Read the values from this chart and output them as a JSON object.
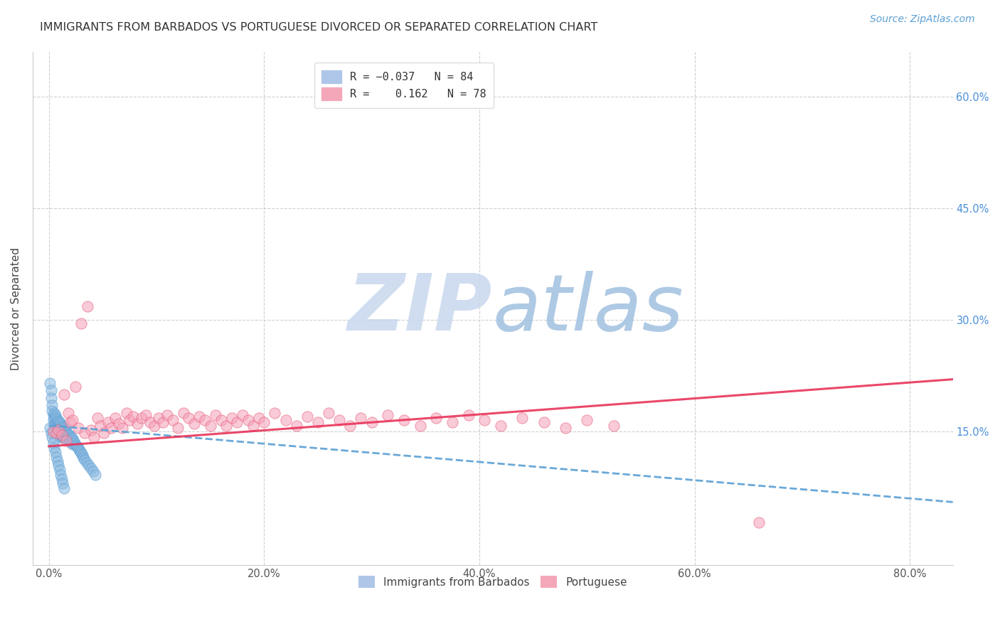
{
  "title": "IMMIGRANTS FROM BARBADOS VS PORTUGUESE DIVORCED OR SEPARATED CORRELATION CHART",
  "source": "Source: ZipAtlas.com",
  "ylabel": "Divorced or Separated",
  "x_tick_labels": [
    "0.0%",
    "20.0%",
    "40.0%",
    "60.0%",
    "80.0%"
  ],
  "x_tick_values": [
    0.0,
    0.2,
    0.4,
    0.6,
    0.8
  ],
  "y_tick_values": [
    0.15,
    0.3,
    0.45,
    0.6
  ],
  "y_tick_labels": [
    "15.0%",
    "30.0%",
    "45.0%",
    "60.0%"
  ],
  "xlim": [
    -0.015,
    0.84
  ],
  "ylim": [
    -0.03,
    0.66
  ],
  "watermark_zip": "ZIP",
  "watermark_atlas": "atlas",
  "blue_dots_x": [
    0.001,
    0.002,
    0.002,
    0.003,
    0.003,
    0.004,
    0.004,
    0.005,
    0.005,
    0.005,
    0.006,
    0.006,
    0.006,
    0.007,
    0.007,
    0.007,
    0.008,
    0.008,
    0.008,
    0.009,
    0.009,
    0.009,
    0.01,
    0.01,
    0.01,
    0.01,
    0.011,
    0.011,
    0.011,
    0.012,
    0.012,
    0.012,
    0.013,
    0.013,
    0.013,
    0.014,
    0.014,
    0.015,
    0.015,
    0.015,
    0.016,
    0.016,
    0.017,
    0.017,
    0.018,
    0.018,
    0.019,
    0.019,
    0.02,
    0.02,
    0.021,
    0.021,
    0.022,
    0.022,
    0.023,
    0.024,
    0.025,
    0.026,
    0.027,
    0.028,
    0.029,
    0.03,
    0.031,
    0.032,
    0.033,
    0.035,
    0.037,
    0.039,
    0.041,
    0.043,
    0.001,
    0.002,
    0.003,
    0.004,
    0.005,
    0.006,
    0.007,
    0.008,
    0.009,
    0.01,
    0.011,
    0.012,
    0.013,
    0.014
  ],
  "blue_dots_y": [
    0.215,
    0.205,
    0.195,
    0.185,
    0.178,
    0.172,
    0.165,
    0.175,
    0.168,
    0.158,
    0.172,
    0.162,
    0.155,
    0.168,
    0.16,
    0.152,
    0.165,
    0.158,
    0.15,
    0.163,
    0.156,
    0.148,
    0.162,
    0.155,
    0.148,
    0.142,
    0.16,
    0.153,
    0.146,
    0.158,
    0.151,
    0.144,
    0.156,
    0.149,
    0.142,
    0.155,
    0.148,
    0.152,
    0.145,
    0.14,
    0.15,
    0.143,
    0.148,
    0.141,
    0.146,
    0.14,
    0.145,
    0.138,
    0.143,
    0.137,
    0.141,
    0.135,
    0.14,
    0.133,
    0.138,
    0.135,
    0.132,
    0.13,
    0.128,
    0.125,
    0.123,
    0.12,
    0.118,
    0.115,
    0.112,
    0.108,
    0.104,
    0.1,
    0.096,
    0.092,
    0.155,
    0.148,
    0.142,
    0.135,
    0.128,
    0.122,
    0.116,
    0.11,
    0.104,
    0.098,
    0.092,
    0.086,
    0.08,
    0.074
  ],
  "pink_dots_x": [
    0.004,
    0.007,
    0.009,
    0.012,
    0.014,
    0.016,
    0.018,
    0.02,
    0.022,
    0.025,
    0.027,
    0.03,
    0.033,
    0.036,
    0.039,
    0.042,
    0.045,
    0.048,
    0.051,
    0.055,
    0.058,
    0.062,
    0.065,
    0.068,
    0.072,
    0.075,
    0.078,
    0.082,
    0.086,
    0.09,
    0.094,
    0.098,
    0.102,
    0.106,
    0.11,
    0.115,
    0.12,
    0.125,
    0.13,
    0.135,
    0.14,
    0.145,
    0.15,
    0.155,
    0.16,
    0.165,
    0.17,
    0.175,
    0.18,
    0.185,
    0.19,
    0.195,
    0.2,
    0.21,
    0.22,
    0.23,
    0.24,
    0.25,
    0.26,
    0.27,
    0.28,
    0.29,
    0.3,
    0.315,
    0.33,
    0.345,
    0.36,
    0.375,
    0.39,
    0.405,
    0.42,
    0.44,
    0.46,
    0.48,
    0.5,
    0.525,
    0.66
  ],
  "pink_dots_y": [
    0.15,
    0.148,
    0.152,
    0.145,
    0.2,
    0.138,
    0.175,
    0.162,
    0.165,
    0.21,
    0.155,
    0.295,
    0.148,
    0.318,
    0.152,
    0.142,
    0.168,
    0.158,
    0.148,
    0.162,
    0.155,
    0.168,
    0.16,
    0.155,
    0.175,
    0.165,
    0.17,
    0.16,
    0.168,
    0.172,
    0.162,
    0.158,
    0.168,
    0.162,
    0.172,
    0.165,
    0.155,
    0.175,
    0.168,
    0.16,
    0.17,
    0.165,
    0.158,
    0.172,
    0.165,
    0.158,
    0.168,
    0.162,
    0.172,
    0.165,
    0.158,
    0.168,
    0.162,
    0.175,
    0.165,
    0.158,
    0.17,
    0.162,
    0.175,
    0.165,
    0.158,
    0.168,
    0.162,
    0.172,
    0.165,
    0.158,
    0.168,
    0.162,
    0.172,
    0.165,
    0.158,
    0.168,
    0.162,
    0.155,
    0.165,
    0.158,
    0.028
  ],
  "blue_line_x0": 0.0,
  "blue_line_x1": 0.84,
  "blue_line_y0": 0.158,
  "blue_line_y1": 0.055,
  "pink_line_x0": 0.0,
  "pink_line_x1": 0.84,
  "pink_line_y0": 0.13,
  "pink_line_y1": 0.22,
  "dot_size": 120,
  "blue_dot_color": "#89b8e0",
  "blue_dot_edge": "#5a9fd4",
  "pink_dot_color": "#f5a0b8",
  "pink_dot_edge": "#e8607a",
  "blue_line_color": "#5a9fd4",
  "pink_line_color": "#e8345a",
  "grid_color": "#bbbbbb",
  "background_color": "#ffffff",
  "title_fontsize": 11.5,
  "source_fontsize": 10,
  "axis_label_fontsize": 11,
  "tick_fontsize": 10.5,
  "watermark_color_zip": "#c8d8ee",
  "watermark_color_atlas": "#a0c0e0",
  "watermark_fontsize": 80
}
